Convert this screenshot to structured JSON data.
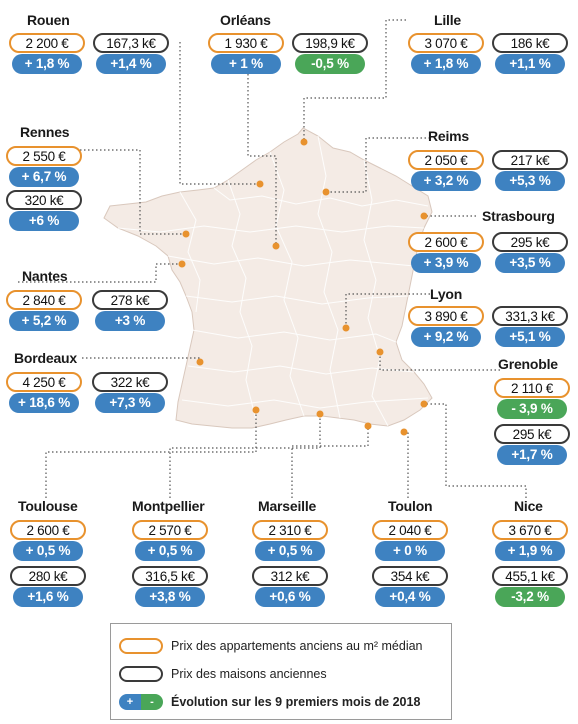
{
  "legend": {
    "apartments": "Prix des appartements anciens au m² médian",
    "houses": "Prix des maisons anciennes",
    "evolution": "Évolution sur les 9 premiers mois de 2018",
    "plus_sign": "+",
    "minus_sign": "-"
  },
  "colors": {
    "apartment_border": "#e8922e",
    "house_border": "#3a3a3a",
    "evolution_positive": "#3e82c1",
    "evolution_negative": "#4aa658",
    "land": "#f4ebe5",
    "city_marker": "#e8922e"
  },
  "cities": [
    {
      "id": "rouen",
      "name": "Rouen",
      "apartment": {
        "price": "2 200 €",
        "evolution": "+ 1,8 %"
      },
      "house": {
        "price": "167,3 k€",
        "evolution": "+1,4 %"
      }
    },
    {
      "id": "orleans",
      "name": "Orléans",
      "apartment": {
        "price": "1 930 €",
        "evolution": "+ 1 %"
      },
      "house": {
        "price": "198,9 k€",
        "evolution": "-0,5 %"
      }
    },
    {
      "id": "lille",
      "name": "Lille",
      "apartment": {
        "price": "3 070 €",
        "evolution": "+ 1,8 %"
      },
      "house": {
        "price": "186 k€",
        "evolution": "+1,1 %"
      }
    },
    {
      "id": "rennes",
      "name": "Rennes",
      "apartment": {
        "price": "2 550 €",
        "evolution": "+ 6,7 %"
      },
      "house": {
        "price": "320 k€",
        "evolution": "+6 %"
      }
    },
    {
      "id": "reims",
      "name": "Reims",
      "apartment": {
        "price": "2 050 €",
        "evolution": "+ 3,2 %"
      },
      "house": {
        "price": "217 k€",
        "evolution": "+5,3 %"
      }
    },
    {
      "id": "strasbourg",
      "name": "Strasbourg",
      "apartment": {
        "price": "2 600 €",
        "evolution": "+ 3,9 %"
      },
      "house": {
        "price": "295 k€",
        "evolution": "+3,5 %"
      }
    },
    {
      "id": "nantes",
      "name": "Nantes",
      "apartment": {
        "price": "2 840 €",
        "evolution": "+ 5,2 %"
      },
      "house": {
        "price": "278 k€",
        "evolution": "+3 %"
      }
    },
    {
      "id": "lyon",
      "name": "Lyon",
      "apartment": {
        "price": "3 890 €",
        "evolution": "+ 9,2 %"
      },
      "house": {
        "price": "331,3 k€",
        "evolution": "+5,1 %"
      }
    },
    {
      "id": "bordeaux",
      "name": "Bordeaux",
      "apartment": {
        "price": "4 250 €",
        "evolution": "+ 18,6 %"
      },
      "house": {
        "price": "322 k€",
        "evolution": "+7,3 %"
      }
    },
    {
      "id": "grenoble",
      "name": "Grenoble",
      "apartment": {
        "price": "2 110 €",
        "evolution": "- 3,9 %"
      },
      "house": {
        "price": "295 k€",
        "evolution": "+1,7 %"
      }
    },
    {
      "id": "toulouse",
      "name": "Toulouse",
      "apartment": {
        "price": "2 600 €",
        "evolution": "+ 0,5 %"
      },
      "house": {
        "price": "280 k€",
        "evolution": "+1,6 %"
      }
    },
    {
      "id": "montpellier",
      "name": "Montpellier",
      "apartment": {
        "price": "2 570 €",
        "evolution": "+ 0,5 %"
      },
      "house": {
        "price": "316,5 k€",
        "evolution": "+3,8 %"
      }
    },
    {
      "id": "marseille",
      "name": "Marseille",
      "apartment": {
        "price": "2 310 €",
        "evolution": "+ 0,5 %"
      },
      "house": {
        "price": "312 k€",
        "evolution": "+0,6 %"
      }
    },
    {
      "id": "toulon",
      "name": "Toulon",
      "apartment": {
        "price": "2 040 €",
        "evolution": "+ 0 %"
      },
      "house": {
        "price": "354 k€",
        "evolution": "+0,4 %"
      }
    },
    {
      "id": "nice",
      "name": "Nice",
      "apartment": {
        "price": "3 670 €",
        "evolution": "+ 1,9 %"
      },
      "house": {
        "price": "455,1 k€",
        "evolution": "-3,2 %"
      }
    }
  ]
}
